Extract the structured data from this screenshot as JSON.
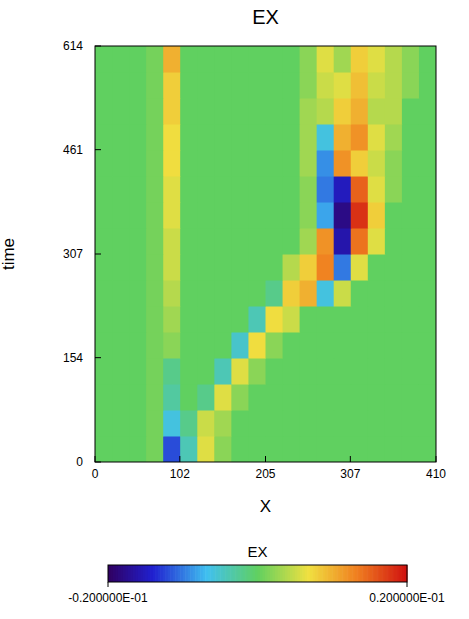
{
  "chart_data": {
    "type": "heatmap",
    "title": "EX",
    "x_label": "X",
    "y_label": "time",
    "xlim": [
      0,
      410
    ],
    "ylim": [
      0,
      614
    ],
    "xticks": [
      0,
      102,
      205,
      307,
      410
    ],
    "yticks": [
      0,
      154,
      307,
      461,
      614
    ],
    "x": [
      10.25,
      30.75,
      51.25,
      71.75,
      92.25,
      112.75,
      133.25,
      153.75,
      174.25,
      194.75,
      215.25,
      235.75,
      256.25,
      276.75,
      297.25,
      317.75,
      338.25,
      358.75,
      379.25,
      399.75
    ],
    "y": [
      19.2,
      57.6,
      95.9,
      134.3,
      172.7,
      211.1,
      249.4,
      287.8,
      326.2,
      364.6,
      402.9,
      441.3,
      479.7,
      518.1,
      556.4,
      594.8
    ],
    "cells": [
      [
        0,
        0,
        0,
        0.001,
        -0.012,
        -0.004,
        0.006,
        0.002,
        0,
        0,
        0,
        0,
        0,
        0,
        0,
        0,
        0,
        0,
        0,
        0
      ],
      [
        0,
        0,
        0,
        0.001,
        -0.006,
        -0.002,
        0.005,
        0.003,
        0,
        0,
        0,
        0,
        0,
        0,
        0,
        0,
        0,
        0,
        0,
        0
      ],
      [
        0,
        0,
        0,
        0.001,
        -0.003,
        0,
        -0.002,
        0.006,
        0.002,
        0,
        0,
        0,
        0,
        0,
        0,
        0,
        0,
        0,
        0,
        0
      ],
      [
        0,
        0,
        0,
        0.001,
        -0.002,
        0,
        0,
        -0.004,
        0.006,
        0.002,
        0,
        0,
        0,
        0,
        0,
        0,
        0,
        0,
        0,
        0
      ],
      [
        0,
        0,
        0,
        0.001,
        0.002,
        0,
        0,
        0,
        -0.005,
        0.007,
        0.002,
        0,
        0,
        0,
        0,
        0,
        0,
        0,
        0,
        0
      ],
      [
        0,
        0,
        0,
        0.001,
        0.003,
        0,
        0,
        0,
        0,
        -0.004,
        0.007,
        0.005,
        0,
        0,
        0,
        0,
        0,
        0,
        0,
        0
      ],
      [
        0,
        0,
        0,
        0.001,
        0.004,
        0,
        0,
        0,
        0,
        0,
        -0.002,
        0.008,
        0.01,
        -0.006,
        0.005,
        0,
        0,
        0,
        0,
        0
      ],
      [
        0,
        0,
        0,
        0.001,
        0.005,
        0,
        0,
        0,
        0,
        0,
        0,
        0.004,
        0.008,
        0.013,
        -0.01,
        0.006,
        0,
        0,
        0,
        0
      ],
      [
        0,
        0,
        0,
        0.001,
        0.005,
        0,
        0,
        0,
        0,
        0,
        0,
        0,
        0.003,
        0.012,
        -0.016,
        0.014,
        0.006,
        0,
        0,
        0
      ],
      [
        0,
        0,
        0,
        0.001,
        0.006,
        0,
        0,
        0,
        0,
        0,
        0,
        0,
        0.002,
        -0.008,
        -0.018,
        0.018,
        0.008,
        0,
        0,
        0
      ],
      [
        0,
        0,
        0,
        0.001,
        0.006,
        0,
        0,
        0,
        0,
        0,
        0,
        0,
        0.002,
        -0.01,
        -0.015,
        0.015,
        0.006,
        0.002,
        0,
        0
      ],
      [
        0,
        0,
        0,
        0.001,
        0.007,
        0,
        0,
        0,
        0,
        0,
        0,
        0,
        0.003,
        -0.009,
        0.012,
        0.008,
        0.005,
        0.002,
        0,
        0
      ],
      [
        0,
        0,
        0,
        0.001,
        0.007,
        0,
        0,
        0,
        0,
        0,
        0,
        0,
        0.003,
        -0.006,
        0.01,
        0.012,
        0.006,
        0.003,
        0,
        0
      ],
      [
        0,
        0,
        0,
        0.001,
        0.008,
        0,
        0,
        0,
        0,
        0,
        0,
        0,
        0.003,
        0.004,
        0.008,
        0.01,
        0.004,
        0.004,
        0,
        0
      ],
      [
        0,
        0,
        0,
        0.001,
        0.008,
        0,
        0,
        0,
        0,
        0,
        0,
        0,
        0.002,
        0.005,
        0.006,
        0.009,
        0.005,
        0.004,
        0.002,
        0
      ],
      [
        0,
        0,
        0,
        0.001,
        0.01,
        0,
        0,
        0,
        0,
        0,
        0,
        0,
        0.002,
        0.006,
        0.003,
        0.008,
        0.006,
        0.004,
        0.002,
        0
      ]
    ],
    "colorbar_label": "EX",
    "clim": [
      -0.02,
      0.02
    ],
    "cticks": [
      {
        "value": -0.02,
        "label": "-0.200000E-01"
      },
      {
        "value": 0.02,
        "label": "0.200000E-01"
      }
    ]
  }
}
